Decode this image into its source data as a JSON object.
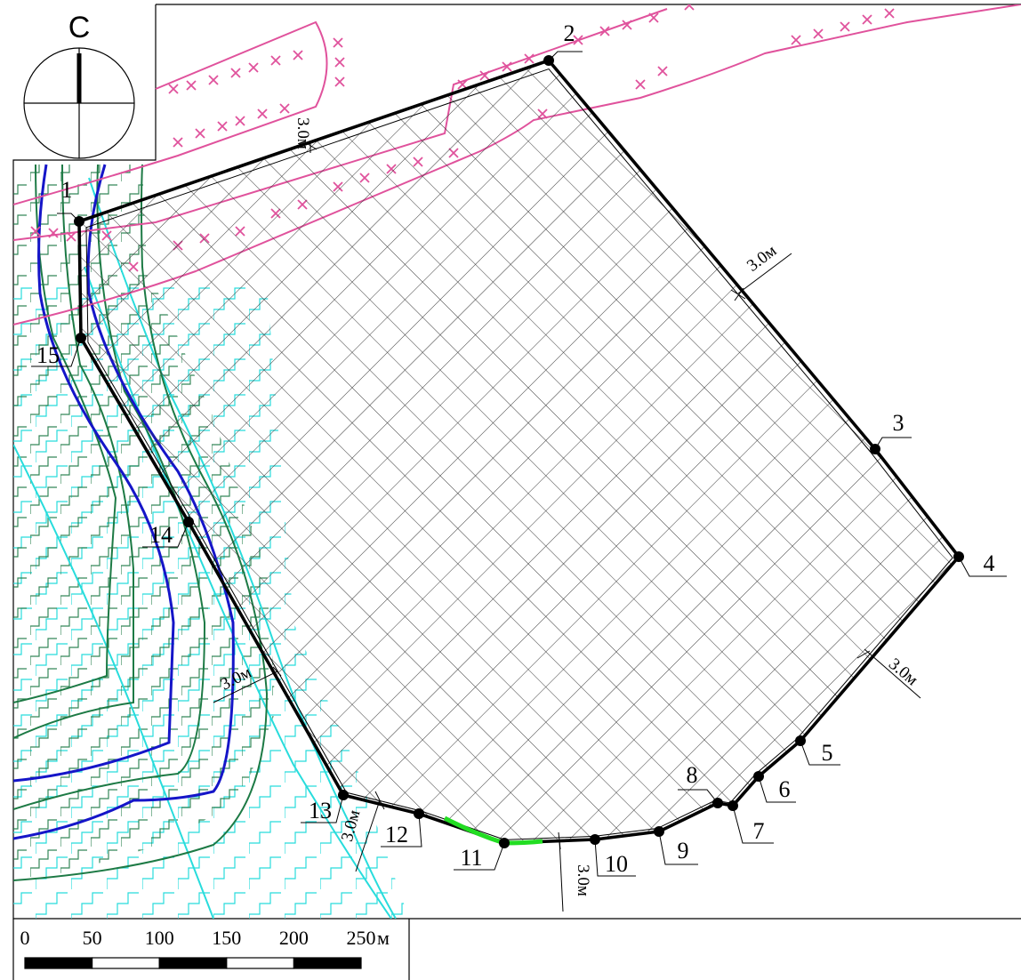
{
  "map": {
    "compass": {
      "north_letter": "С"
    },
    "points": [
      {
        "label": "1"
      },
      {
        "label": "2"
      },
      {
        "label": "3"
      },
      {
        "label": "4"
      },
      {
        "label": "5"
      },
      {
        "label": "6"
      },
      {
        "label": "7"
      },
      {
        "label": "8"
      },
      {
        "label": "9"
      },
      {
        "label": "10"
      },
      {
        "label": "11"
      },
      {
        "label": "12"
      },
      {
        "label": "13"
      },
      {
        "label": "14"
      },
      {
        "label": "15"
      }
    ],
    "setback_labels": [
      "3.0м",
      "3.0м",
      "3.0м",
      "3.0м",
      "3.0м",
      "3.0м"
    ],
    "scale_bar": {
      "ticks": [
        "0",
        "50",
        "100",
        "150",
        "200",
        "250"
      ],
      "unit": "м"
    },
    "colors": {
      "boundary": "#000000",
      "hatch": "#333333",
      "pink_line": "#e0529c",
      "blue_line": "#1515c8",
      "cyan_line": "#28dcdc",
      "green_line": "#1d7a45",
      "bright_green": "#22dd22"
    }
  }
}
